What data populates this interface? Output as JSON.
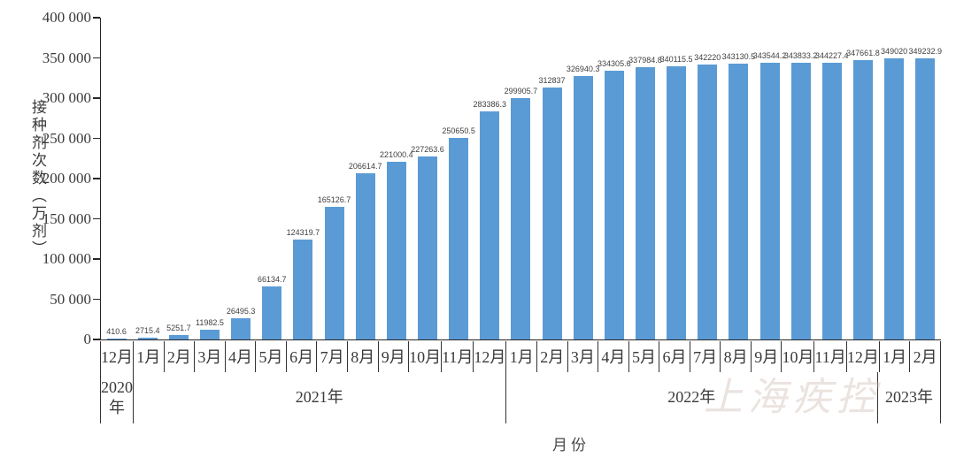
{
  "chart_data": {
    "type": "bar",
    "title": "",
    "xlabel": "月份",
    "ylabel": "接种剂次数（万剂）",
    "ylim": [
      0,
      400000
    ],
    "grid": false,
    "legend": "none",
    "bar_color": "#5B9BD5",
    "y_tick_labels": [
      "400 000",
      "350 000",
      "300 000",
      "250 000",
      "200 000",
      "150 000",
      "100 000",
      "50 000",
      "0"
    ],
    "y_tick_values": [
      400000,
      350000,
      300000,
      250000,
      200000,
      150000,
      100000,
      50000,
      0
    ],
    "categories": [
      "12月",
      "1月",
      "2月",
      "3月",
      "4月",
      "5月",
      "6月",
      "7月",
      "8月",
      "9月",
      "10月",
      "11月",
      "12月",
      "1月",
      "2月",
      "3月",
      "4月",
      "5月",
      "6月",
      "7月",
      "8月",
      "9月",
      "10月",
      "11月",
      "12月",
      "1月",
      "2月"
    ],
    "values": [
      410.6,
      2715.4,
      5251.7,
      11982.5,
      26495.3,
      66134.7,
      124319.7,
      165126.7,
      206614.7,
      221000.4,
      227263.6,
      250650.5,
      283386.3,
      299905.7,
      312837,
      326940.3,
      334305.6,
      337984.8,
      340115.5,
      342220,
      343130.5,
      343544.2,
      343833.2,
      344227.4,
      347661.8,
      349020,
      349232.9
    ],
    "value_labels": [
      "410.6",
      "2715.4",
      "5251.7",
      "11982.5",
      "26495.3",
      "66134.7",
      "124319.7",
      "165126.7",
      "206614.7",
      "221000.4",
      "227263.6",
      "250650.5",
      "283386.3",
      "299905.7",
      "312837",
      "326940.3",
      "334305.6",
      "337984.8",
      "340115.5",
      "342220",
      "343130.5",
      "343544.2",
      "343833.2",
      "344227.4",
      "347661.8",
      "349020",
      "349232.9"
    ],
    "year_groups": [
      {
        "label": "2020年",
        "span": 1
      },
      {
        "label": "2021年",
        "span": 12
      },
      {
        "label": "2022年",
        "span": 12
      },
      {
        "label": "2023年",
        "span": 2
      }
    ]
  },
  "watermark": {
    "text": "上海疾控"
  }
}
